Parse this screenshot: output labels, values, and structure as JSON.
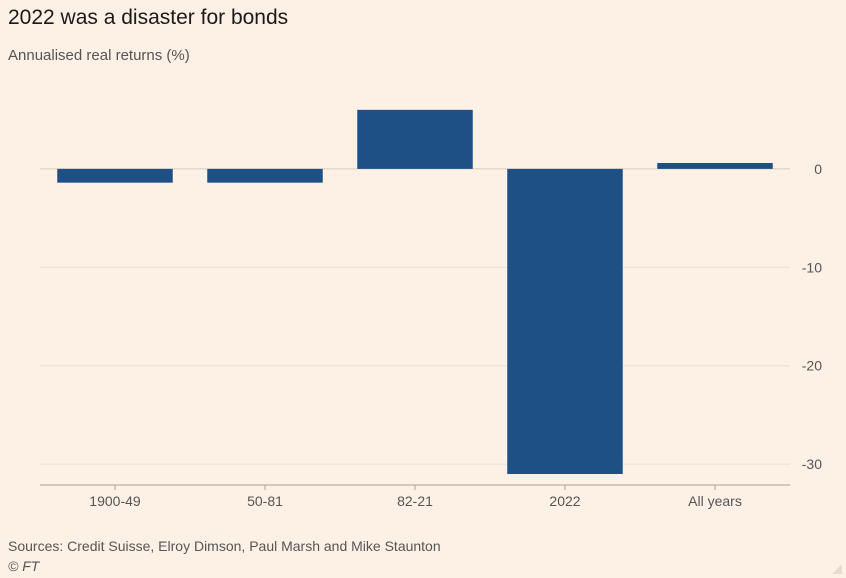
{
  "chart_data": {
    "type": "bar",
    "title": "2022 was a disaster for bonds",
    "subtitle": "Annualised real returns (%)",
    "categories": [
      "1900-49",
      "50-81",
      "82-21",
      "2022",
      "All years"
    ],
    "values": [
      -1.4,
      -1.4,
      6.0,
      -31.0,
      0.6
    ],
    "ylim": [
      -31,
      7
    ],
    "yticks": [
      0,
      -10,
      -20,
      -30
    ],
    "ytick_labels": [
      "0",
      "-10",
      "-20",
      "-30"
    ],
    "y_axis_side": "right",
    "grid": true,
    "bar_color": "#1f5085",
    "source": "Sources: Credit Suisse, Elroy Dimson, Paul Marsh and Mike Staunton",
    "credit": "© FT"
  }
}
